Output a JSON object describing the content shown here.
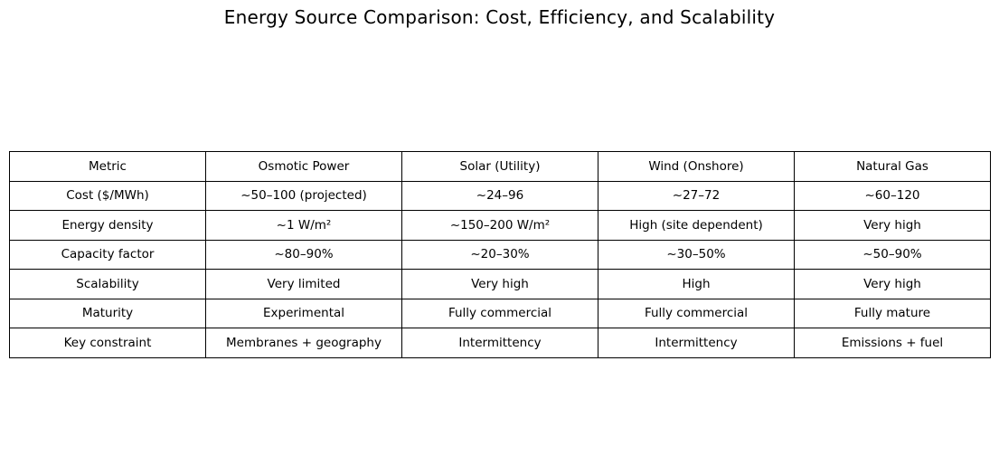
{
  "chart_data": {
    "type": "table",
    "title": "Energy Source Comparison: Cost, Efficiency, and Scalability",
    "columns": [
      "Metric",
      "Osmotic Power",
      "Solar (Utility)",
      "Wind (Onshore)",
      "Natural Gas"
    ],
    "rows": [
      [
        "Cost ($/MWh)",
        "~50–100 (projected)",
        "~24–96",
        "~27–72",
        "~60–120"
      ],
      [
        "Energy density",
        "~1 W/m²",
        "~150–200 W/m²",
        "High (site dependent)",
        "Very high"
      ],
      [
        "Capacity factor",
        "~80–90%",
        "~20–30%",
        "~30–50%",
        "~50–90%"
      ],
      [
        "Scalability",
        "Very limited",
        "Very high",
        "High",
        "Very high"
      ],
      [
        "Maturity",
        "Experimental",
        "Fully commercial",
        "Fully commercial",
        "Fully mature"
      ],
      [
        "Key constraint",
        "Membranes + geography",
        "Intermittency",
        "Intermittency",
        "Emissions + fuel"
      ]
    ],
    "colors": {
      "background": "#ffffff",
      "grid": "#000000",
      "text": "#000000"
    }
  }
}
